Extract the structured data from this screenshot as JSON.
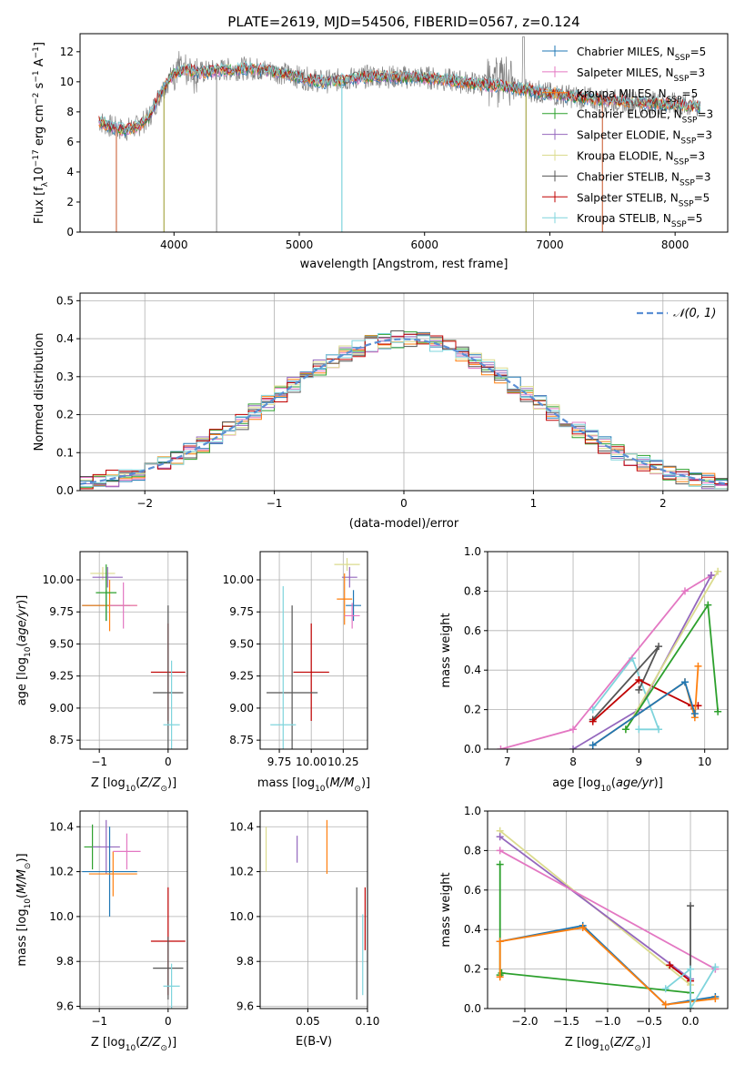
{
  "figure_title": "PLATE=2619, MJD=54506, FIBERID=0567, z=0.124",
  "colors": {
    "chabrier_miles": "#1f77b4",
    "salpeter_miles": "#e377c2",
    "kroupa_miles": "#ff7f0e",
    "chabrier_elodie": "#2ca02c",
    "salpeter_elodie": "#9467bd",
    "kroupa_elodie": "#dbdb8d",
    "chabrier_stelib": "#555555",
    "salpeter_stelib": "#c00000",
    "kroupa_stelib": "#7fd4dc",
    "data": "#808080",
    "normal": "#5b8fd4",
    "green_line": "#5f8a5f",
    "yellow_line": "#d4e157"
  },
  "chart_data": [
    {
      "id": "spectrum",
      "type": "line",
      "xlabel": "wavelength [Angstrom, rest frame]",
      "ylabel": "Flux [f_λ10^-17 erg cm^-2 s^-1 A^-1]",
      "xlim": [
        3250,
        8420
      ],
      "ylim": [
        0,
        13.2
      ],
      "xticks": [
        4000,
        5000,
        6000,
        7000,
        8000
      ],
      "yticks": [
        0,
        2,
        4,
        6,
        8,
        10,
        12
      ],
      "legend_position": "right",
      "legend": [
        {
          "base": "Chabrier MILES, N",
          "sub": "SSP",
          "rest": "=5",
          "color": "#1f77b4"
        },
        {
          "base": "Salpeter MILES, N",
          "sub": "SSP",
          "rest": "=3",
          "color": "#e377c2"
        },
        {
          "base": "Kroupa MILES, N",
          "sub": "SSP",
          "rest": "=5",
          "color": "#ff7f0e"
        },
        {
          "base": "Chabrier ELODIE, N",
          "sub": "SSP",
          "rest": "=3",
          "color": "#2ca02c"
        },
        {
          "base": "Salpeter ELODIE, N",
          "sub": "SSP",
          "rest": "=3",
          "color": "#9467bd"
        },
        {
          "base": "Kroupa ELODIE, N",
          "sub": "SSP",
          "rest": "=3",
          "color": "#dbdb8d"
        },
        {
          "base": "Chabrier STELIB, N",
          "sub": "SSP",
          "rest": "=3",
          "color": "#555555"
        },
        {
          "base": "Salpeter STELIB, N",
          "sub": "SSP",
          "rest": "=5",
          "color": "#c00000"
        },
        {
          "base": "Kroupa STELIB, N",
          "sub": "SSP",
          "rest": "=5",
          "color": "#7fd4dc"
        }
      ],
      "model_continuum": {
        "x": [
          3400,
          3500,
          3600,
          3700,
          3800,
          3900,
          4000,
          4100,
          4200,
          4400,
          4600,
          4800,
          5000,
          5200,
          5400,
          5600,
          5800,
          6000,
          6200,
          6400,
          6600,
          6800,
          7000,
          7200,
          7400,
          7600,
          7800,
          8000,
          8200
        ],
        "y": [
          7.4,
          7.0,
          6.8,
          7.0,
          7.6,
          9.4,
          10.6,
          10.8,
          10.6,
          10.8,
          10.9,
          10.7,
          10.3,
          10.0,
          10.2,
          10.4,
          10.3,
          10.3,
          10.1,
          9.9,
          9.7,
          9.5,
          9.2,
          9.0,
          8.8,
          8.7,
          8.6,
          8.5,
          8.3
        ]
      },
      "dips": [
        {
          "x": 3540,
          "y": 0
        },
        {
          "x": 3920,
          "y": 0
        },
        {
          "x": 4340,
          "y": 0
        },
        {
          "x": 5340,
          "y": 0
        },
        {
          "x": 6810,
          "y": 0
        },
        {
          "x": 7420,
          "y": 0
        }
      ]
    },
    {
      "id": "residuals",
      "type": "bar",
      "xlabel": "(data-model)/error",
      "ylabel": "Normed distribution",
      "xlim": [
        -2.5,
        2.5
      ],
      "ylim": [
        0,
        0.52
      ],
      "xticks": [
        -2,
        -1,
        0,
        1,
        2
      ],
      "yticks": [
        0.0,
        0.1,
        0.2,
        0.3,
        0.4,
        0.5
      ],
      "grid": true,
      "legend_position": "top-right",
      "legend": [
        {
          "label": "𝒩(0, 1)",
          "color": "#5b8fd4"
        }
      ],
      "bin_width": 0.1
    },
    {
      "id": "age_vs_Z",
      "type": "scatter",
      "xlabel": "Z [log10(Z/Z⊙)]",
      "ylabel": "age [log10(age/yr)]",
      "xlim": [
        -1.28,
        0.28
      ],
      "ylim": [
        8.68,
        10.22
      ],
      "xticks": [
        -1,
        0
      ],
      "yticks": [
        8.75,
        9.0,
        9.25,
        9.5,
        9.75,
        10.0
      ],
      "grid": true,
      "points": [
        {
          "x": -0.95,
          "y": 10.05,
          "xe": 0.18,
          "ye": 0.05,
          "color": "#dbdb8d"
        },
        {
          "x": -0.88,
          "y": 10.02,
          "xe": 0.22,
          "ye": 0.08,
          "color": "#9467bd"
        },
        {
          "x": -0.9,
          "y": 9.8,
          "xe": 0.35,
          "ye": 0.12,
          "color": "#1f77b4"
        },
        {
          "x": -0.85,
          "y": 9.8,
          "xe": 0.4,
          "ye": 0.2,
          "color": "#ff7f0e"
        },
        {
          "x": -0.65,
          "y": 9.8,
          "xe": 0.2,
          "ye": 0.18,
          "color": "#e377c2"
        },
        {
          "x": -0.9,
          "y": 9.9,
          "xe": 0.15,
          "ye": 0.22,
          "color": "#2ca02c"
        },
        {
          "x": 0.0,
          "y": 9.28,
          "xe": 0.25,
          "ye": 0.38,
          "color": "#c00000"
        },
        {
          "x": 0.0,
          "y": 9.12,
          "xe": 0.22,
          "ye": 0.68,
          "color": "#555555"
        },
        {
          "x": 0.05,
          "y": 8.87,
          "xe": 0.12,
          "ye": 0.5,
          "color": "#7fd4dc"
        }
      ]
    },
    {
      "id": "age_vs_mass",
      "type": "scatter",
      "xlabel": "mass [log10(M/M⊙)]",
      "ylabel": "",
      "xlim": [
        9.6,
        10.44
      ],
      "ylim": [
        8.68,
        10.22
      ],
      "xticks": [
        9.75,
        10.0,
        10.25
      ],
      "yticks": [
        8.75,
        9.0,
        9.25,
        9.5,
        9.75,
        10.0
      ],
      "grid": true,
      "points": [
        {
          "x": 10.28,
          "y": 10.12,
          "xe": 0.1,
          "ye": 0.05,
          "color": "#dbdb8d"
        },
        {
          "x": 10.3,
          "y": 10.02,
          "xe": 0.06,
          "ye": 0.08,
          "color": "#9467bd"
        },
        {
          "x": 10.33,
          "y": 9.8,
          "xe": 0.06,
          "ye": 0.12,
          "color": "#1f77b4"
        },
        {
          "x": 10.26,
          "y": 9.85,
          "xe": 0.06,
          "ye": 0.2,
          "color": "#ff7f0e"
        },
        {
          "x": 10.32,
          "y": 9.72,
          "xe": 0.06,
          "ye": 0.1,
          "color": "#e377c2"
        },
        {
          "x": 10.0,
          "y": 9.28,
          "xe": 0.14,
          "ye": 0.38,
          "color": "#c00000"
        },
        {
          "x": 9.85,
          "y": 9.12,
          "xe": 0.2,
          "ye": 0.68,
          "color": "#555555"
        },
        {
          "x": 9.78,
          "y": 8.87,
          "xe": 0.1,
          "ye": 1.08,
          "color": "#7fd4dc"
        }
      ]
    },
    {
      "id": "weight_vs_age",
      "type": "line",
      "xlabel": "age [log10(age/yr)]",
      "ylabel": "mass weight",
      "xlim": [
        6.7,
        10.35
      ],
      "ylim": [
        0,
        1.0
      ],
      "xticks": [
        7,
        8,
        9,
        10
      ],
      "yticks": [
        0.0,
        0.2,
        0.4,
        0.6,
        0.8,
        1.0
      ],
      "grid": true,
      "series": [
        {
          "color": "#7fd4dc",
          "x": [
            8.3,
            8.9,
            9.3,
            9.0
          ],
          "y": [
            0.2,
            0.46,
            0.1,
            0.1
          ]
        },
        {
          "color": "#555555",
          "x": [
            8.3,
            9.3,
            9.0
          ],
          "y": [
            0.15,
            0.52,
            0.3
          ]
        },
        {
          "color": "#c00000",
          "x": [
            8.3,
            9.0,
            9.8,
            9.9
          ],
          "y": [
            0.14,
            0.35,
            0.22,
            0.22
          ]
        },
        {
          "color": "#e377c2",
          "x": [
            6.9,
            8.0,
            9.7,
            10.1
          ],
          "y": [
            0.0,
            0.1,
            0.8,
            0.88
          ]
        },
        {
          "color": "#9467bd",
          "x": [
            8.0,
            9.0,
            10.1
          ],
          "y": [
            0.0,
            0.2,
            0.88
          ]
        },
        {
          "color": "#dbdb8d",
          "x": [
            8.8,
            10.2
          ],
          "y": [
            0.1,
            0.9
          ]
        },
        {
          "color": "#2ca02c",
          "x": [
            8.8,
            10.05,
            10.2
          ],
          "y": [
            0.1,
            0.73,
            0.19
          ]
        },
        {
          "color": "#ff7f0e",
          "x": [
            8.3,
            9.7,
            9.85,
            9.9
          ],
          "y": [
            0.02,
            0.34,
            0.16,
            0.42
          ]
        },
        {
          "color": "#1f77b4",
          "x": [
            8.3,
            9.7,
            9.85
          ],
          "y": [
            0.02,
            0.34,
            0.18
          ]
        }
      ]
    },
    {
      "id": "mass_vs_Z",
      "type": "scatter",
      "xlabel": "Z [log10(Z/Z⊙)]",
      "ylabel": "mass [log10(M/M⊙)]",
      "xlim": [
        -1.28,
        0.28
      ],
      "ylim": [
        9.59,
        10.47
      ],
      "xticks": [
        -1,
        0
      ],
      "yticks": [
        9.6,
        9.8,
        10.0,
        10.2,
        10.4
      ],
      "grid": true,
      "points": [
        {
          "x": -1.1,
          "y": 10.31,
          "xe": 0.12,
          "ye": 0.1,
          "color": "#2ca02c"
        },
        {
          "x": -0.9,
          "y": 10.31,
          "xe": 0.2,
          "ye": 0.12,
          "color": "#9467bd"
        },
        {
          "x": -0.85,
          "y": 10.2,
          "xe": 0.4,
          "ye": 0.2,
          "color": "#1f77b4"
        },
        {
          "x": -0.8,
          "y": 10.19,
          "xe": 0.35,
          "ye": 0.1,
          "color": "#ff7f0e"
        },
        {
          "x": -0.6,
          "y": 10.29,
          "xe": 0.2,
          "ye": 0.08,
          "color": "#e377c2"
        },
        {
          "x": 0.0,
          "y": 9.89,
          "xe": 0.25,
          "ye": 0.24,
          "color": "#c00000"
        },
        {
          "x": 0.0,
          "y": 9.77,
          "xe": 0.22,
          "ye": 0.14,
          "color": "#555555"
        },
        {
          "x": 0.05,
          "y": 9.69,
          "xe": 0.12,
          "ye": 0.1,
          "color": "#7fd4dc"
        }
      ]
    },
    {
      "id": "mass_vs_ebv",
      "type": "scatter",
      "xlabel": "E(B-V)",
      "ylabel": "",
      "xlim": [
        0.01,
        0.1
      ],
      "ylim": [
        9.59,
        10.47
      ],
      "xticks": [
        0.05,
        0.1
      ],
      "xticklabels": [
        "0.05",
        "0.10"
      ],
      "yticks": [
        9.6,
        9.8,
        10.0,
        10.2,
        10.4
      ],
      "grid": true,
      "points": [
        {
          "x": 0.015,
          "y": 10.3,
          "ye": 0.1,
          "color": "#dbdb8d"
        },
        {
          "x": 0.041,
          "y": 10.3,
          "ye": 0.06,
          "color": "#9467bd"
        },
        {
          "x": 0.066,
          "y": 10.31,
          "ye": 0.12,
          "color": "#ff7f0e"
        },
        {
          "x": 0.091,
          "y": 9.88,
          "ye": 0.25,
          "color": "#555555"
        },
        {
          "x": 0.096,
          "y": 9.83,
          "ye": 0.18,
          "color": "#7fd4dc"
        },
        {
          "x": 0.098,
          "y": 9.99,
          "ye": 0.14,
          "color": "#c00000"
        }
      ]
    },
    {
      "id": "weight_vs_Z",
      "type": "line",
      "xlabel": "Z [log10(Z/Z⊙)]",
      "ylabel": "mass weight",
      "xlim": [
        -2.45,
        0.45
      ],
      "ylim": [
        0,
        1.0
      ],
      "xticks": [
        -2.0,
        -1.5,
        -1.0,
        -0.5,
        0.0
      ],
      "xticklabels": [
        "−2.0",
        "−1.5",
        "−1.0",
        "−0.5",
        "0.0"
      ],
      "yticks": [
        0.0,
        0.2,
        0.4,
        0.6,
        0.8,
        1.0
      ],
      "grid": true,
      "series": [
        {
          "color": "#dbdb8d",
          "x": [
            -2.3,
            0.0
          ],
          "y": [
            0.9,
            0.12
          ]
        },
        {
          "color": "#9467bd",
          "x": [
            -2.3,
            0.0
          ],
          "y": [
            0.87,
            0.15
          ]
        },
        {
          "color": "#e377c2",
          "x": [
            -2.3,
            0.3
          ],
          "y": [
            0.8,
            0.2
          ]
        },
        {
          "color": "#c00000",
          "x": [
            -0.25,
            0.0
          ],
          "y": [
            0.22,
            0.14
          ]
        },
        {
          "color": "#2ca02c",
          "x": [
            -2.3,
            -2.3,
            -2.28,
            0.0
          ],
          "y": [
            0.73,
            0.17,
            0.18,
            0.08
          ]
        },
        {
          "color": "#1f77b4",
          "x": [
            -2.3,
            -1.3,
            -0.3,
            0.0,
            0.3
          ],
          "y": [
            0.34,
            0.42,
            0.02,
            0.04,
            0.06
          ]
        },
        {
          "color": "#ff7f0e",
          "x": [
            -2.3,
            -2.3,
            -1.3,
            -0.3,
            0.3
          ],
          "y": [
            0.16,
            0.34,
            0.41,
            0.02,
            0.05
          ]
        },
        {
          "color": "#555555",
          "x": [
            0.0,
            0.0
          ],
          "y": [
            0.52,
            0.0
          ]
        },
        {
          "color": "#7fd4dc",
          "x": [
            -0.3,
            0.0,
            0.0,
            0.3
          ],
          "y": [
            0.1,
            0.2,
            0.0,
            0.21
          ]
        }
      ]
    }
  ]
}
